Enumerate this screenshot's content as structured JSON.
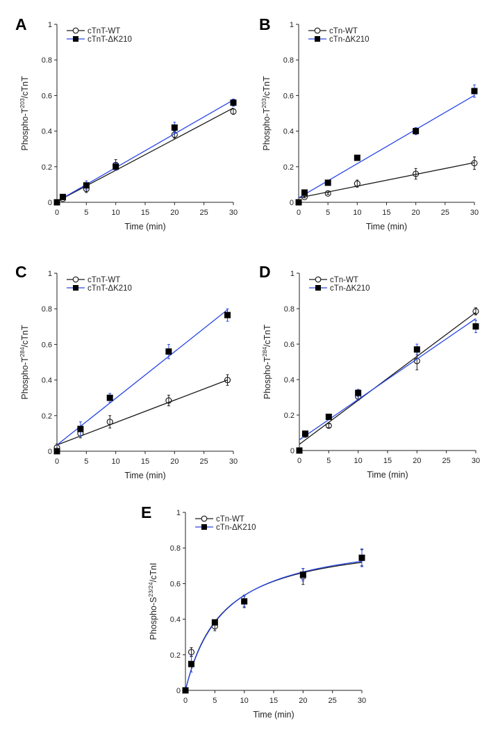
{
  "colors": {
    "wt": "#1a1a1a",
    "mutant": "#2846e6"
  },
  "chart_data": [
    {
      "type": "scatter",
      "panel": "A",
      "xlabel": "Time (min)",
      "ylabel": {
        "pre": "Phospho-T",
        "sup": "203",
        "post": "/cTnT"
      },
      "xlim": [
        0,
        30
      ],
      "ylim": [
        0,
        1
      ],
      "xticks": [
        "0",
        "5",
        "10",
        "15",
        "20",
        "25",
        "30"
      ],
      "yticks": [
        "0",
        "0.2",
        "0.4",
        "0.6",
        "0.8",
        "1"
      ],
      "legend_position": "top-left",
      "series": [
        {
          "name": "cTnT-WT",
          "marker": "open-circle",
          "x": [
            0,
            1,
            5,
            10,
            20,
            30
          ],
          "y": [
            0,
            0.02,
            0.075,
            0.21,
            0.38,
            0.51
          ],
          "err": [
            0,
            0.005,
            0.02,
            0.03,
            0.02,
            0.015
          ],
          "fit": {
            "model": "linear",
            "intercept": 0.005,
            "slope": 0.0175
          }
        },
        {
          "name": "cTnT-ΔK210",
          "marker": "filled-square",
          "x": [
            0,
            1,
            5,
            10,
            20,
            30
          ],
          "y": [
            0,
            0.03,
            0.095,
            0.2,
            0.42,
            0.56
          ],
          "err": [
            0,
            0.005,
            0.025,
            0.02,
            0.03,
            0.02
          ],
          "fit": {
            "model": "linear",
            "intercept": 0.005,
            "slope": 0.019
          }
        }
      ]
    },
    {
      "type": "scatter",
      "panel": "B",
      "xlabel": "Time (min)",
      "ylabel": {
        "pre": "Phospho-T",
        "sup": "203",
        "post": "/cTnT"
      },
      "xlim": [
        0,
        30
      ],
      "ylim": [
        0,
        1
      ],
      "xticks": [
        "0",
        "5",
        "10",
        "15",
        "20",
        "25",
        "30"
      ],
      "yticks": [
        "0",
        "0.2",
        "0.4",
        "0.6",
        "0.8",
        "1"
      ],
      "legend_position": "top-left",
      "series": [
        {
          "name": "cTn-WT",
          "marker": "open-circle",
          "x": [
            0,
            1,
            5,
            10,
            20,
            30
          ],
          "y": [
            0,
            0.03,
            0.05,
            0.105,
            0.16,
            0.22
          ],
          "err": [
            0,
            0.005,
            0.005,
            0.02,
            0.03,
            0.035
          ],
          "fit": {
            "model": "linear",
            "intercept": 0.025,
            "slope": 0.0066
          }
        },
        {
          "name": "cTn-ΔK210",
          "marker": "filled-square",
          "x": [
            0,
            1,
            5,
            10,
            20,
            30
          ],
          "y": [
            0,
            0.055,
            0.11,
            0.25,
            0.4,
            0.625
          ],
          "err": [
            0,
            0.005,
            0.005,
            0.01,
            0.02,
            0.035
          ],
          "fit": {
            "model": "linear",
            "intercept": 0.025,
            "slope": 0.0192
          }
        }
      ]
    },
    {
      "type": "scatter",
      "panel": "C",
      "xlabel": "Time (min)",
      "ylabel": {
        "pre": "Phospho-T",
        "sup": "284",
        "post": "/cTnT"
      },
      "xlim": [
        0,
        30
      ],
      "ylim": [
        0,
        1
      ],
      "xticks": [
        "0",
        "5",
        "10",
        "15",
        "20",
        "25",
        "30"
      ],
      "yticks": [
        "0",
        "0.2",
        "0.4",
        "0.6",
        "0.8",
        "1"
      ],
      "legend_position": "top-left",
      "series": [
        {
          "name": "cTnT-WT",
          "marker": "open-circle",
          "x": [
            0,
            4,
            9,
            19,
            29
          ],
          "y": [
            0.02,
            0.1,
            0.165,
            0.285,
            0.4
          ],
          "err": [
            0.02,
            0.025,
            0.035,
            0.03,
            0.03
          ],
          "fit": {
            "model": "linear",
            "intercept": 0.035,
            "slope": 0.0126
          }
        },
        {
          "name": "cTnT-ΔK210",
          "marker": "filled-square",
          "x": [
            0,
            4,
            9,
            19,
            29
          ],
          "y": [
            0,
            0.125,
            0.3,
            0.56,
            0.765
          ],
          "err": [
            0.005,
            0.04,
            0.025,
            0.04,
            0.035
          ],
          "fit": {
            "model": "linear",
            "intercept": 0.035,
            "slope": 0.0262
          }
        }
      ]
    },
    {
      "type": "scatter",
      "panel": "D",
      "xlabel": "Time (min)",
      "ylabel": {
        "pre": "Phospho-T",
        "sup": "284",
        "post": "/cTnT"
      },
      "xlim": [
        0,
        30
      ],
      "ylim": [
        0,
        1
      ],
      "xticks": [
        "0",
        "5",
        "10",
        "15",
        "20",
        "25",
        "30"
      ],
      "yticks": [
        "0",
        "0.2",
        "0.4",
        "0.6",
        "0.8",
        "1"
      ],
      "legend_position": "top-left",
      "series": [
        {
          "name": "cTn-WT",
          "marker": "open-circle",
          "x": [
            0,
            1,
            5,
            10,
            20,
            30
          ],
          "y": [
            0,
            0.09,
            0.14,
            0.305,
            0.505,
            0.785
          ],
          "err": [
            0,
            0.01,
            0.01,
            0.02,
            0.05,
            0.02
          ],
          "fit": {
            "model": "linear",
            "intercept": 0.035,
            "slope": 0.0248
          }
        },
        {
          "name": "cTn-ΔK210",
          "marker": "filled-square",
          "x": [
            0,
            1,
            5,
            10,
            20,
            30
          ],
          "y": [
            0,
            0.095,
            0.19,
            0.325,
            0.57,
            0.7
          ],
          "err": [
            0,
            0.01,
            0.01,
            0.02,
            0.03,
            0.035
          ],
          "fit": {
            "model": "linear",
            "intercept": 0.06,
            "slope": 0.0228
          }
        }
      ]
    },
    {
      "type": "scatter",
      "panel": "E",
      "xlabel": "Time (min)",
      "ylabel": {
        "pre": "Phospho-S",
        "sup": "23/24",
        "post": "/cTnI"
      },
      "xlim": [
        0,
        30
      ],
      "ylim": [
        0,
        1
      ],
      "xticks": [
        "0",
        "5",
        "10",
        "15",
        "20",
        "25",
        "30"
      ],
      "yticks": [
        "0",
        "0.2",
        "0.4",
        "0.6",
        "0.8",
        "1"
      ],
      "legend_position": "top-left",
      "series": [
        {
          "name": "cTn-WT",
          "marker": "open-circle",
          "x": [
            0,
            1,
            5,
            10,
            20,
            30
          ],
          "y": [
            0,
            0.215,
            0.36,
            0.5,
            0.64,
            0.745
          ],
          "err": [
            0,
            0.025,
            0.025,
            0.035,
            0.045,
            0.045
          ],
          "fit": {
            "model": "hyperbolic",
            "vmax": 0.87,
            "k": 6.3
          }
        },
        {
          "name": "cTn-ΔK210",
          "marker": "filled-square",
          "x": [
            0,
            1,
            5,
            10,
            20,
            30
          ],
          "y": [
            0,
            0.148,
            0.382,
            0.5,
            0.65,
            0.745
          ],
          "err": [
            0,
            0.045,
            0.015,
            0.03,
            0.035,
            0.05
          ],
          "fit": {
            "model": "hyperbolic",
            "vmax": 0.885,
            "k": 6.6
          }
        }
      ]
    }
  ]
}
